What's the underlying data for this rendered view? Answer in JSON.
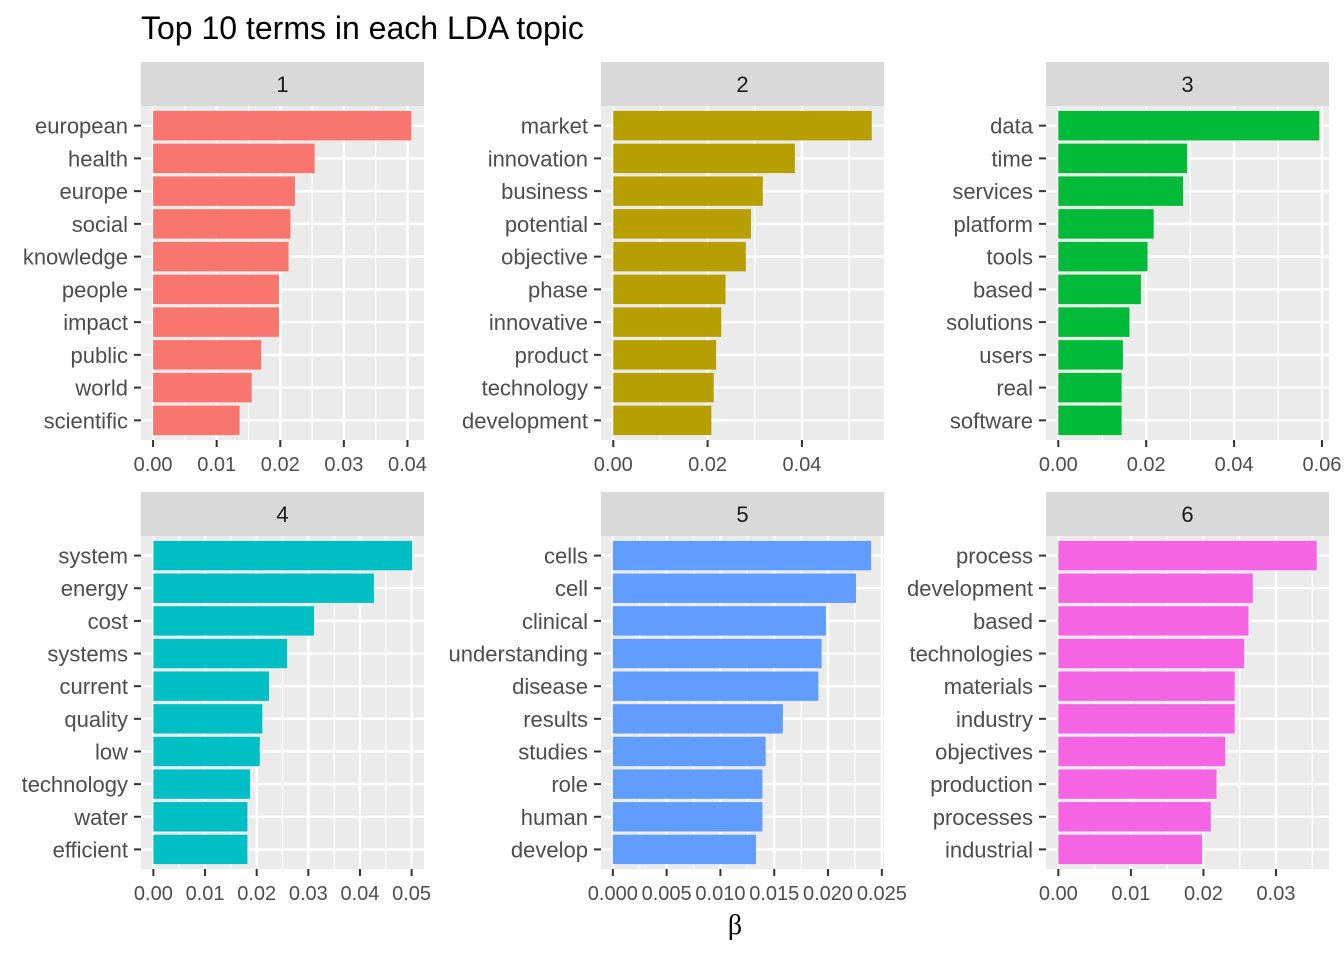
{
  "chart_data": {
    "type": "bar",
    "orientation": "horizontal",
    "title": "Top 10 terms in each LDA topic",
    "xlabel": "β",
    "ylabel": "",
    "grid": true,
    "legend": "none",
    "panels": [
      {
        "strip": "1",
        "color": "#F8766D",
        "xlim": [
          -0.0019,
          0.0426
        ],
        "ticks": [
          0,
          0.01,
          0.02,
          0.03,
          0.04
        ],
        "tick_labels": [
          "0.00",
          "0.01",
          "0.02",
          "0.03",
          "0.04"
        ],
        "categories": [
          "european",
          "health",
          "europe",
          "social",
          "knowledge",
          "people",
          "impact",
          "public",
          "world",
          "scientific"
        ],
        "values": [
          0.0406,
          0.0254,
          0.0223,
          0.0216,
          0.0213,
          0.0198,
          0.0198,
          0.017,
          0.0155,
          0.0136
        ]
      },
      {
        "strip": "2",
        "color": "#B79F00",
        "xlim": [
          -0.0026,
          0.0574
        ],
        "ticks": [
          0,
          0.02,
          0.04
        ],
        "tick_labels": [
          "0.00",
          "0.02",
          "0.04"
        ],
        "categories": [
          "market",
          "innovation",
          "business",
          "potential",
          "objective",
          "phase",
          "innovative",
          "product",
          "technology",
          "development"
        ],
        "values": [
          0.0548,
          0.0385,
          0.0317,
          0.0292,
          0.0281,
          0.0238,
          0.0229,
          0.0218,
          0.0213,
          0.0208
        ]
      },
      {
        "strip": "3",
        "color": "#00BA38",
        "xlim": [
          -0.0028,
          0.0616
        ],
        "ticks": [
          0,
          0.02,
          0.04,
          0.06
        ],
        "tick_labels": [
          "0.00",
          "0.02",
          "0.04",
          "0.06"
        ],
        "categories": [
          "data",
          "time",
          "services",
          "platform",
          "tools",
          "based",
          "solutions",
          "users",
          "real",
          "software"
        ],
        "values": [
          0.0594,
          0.0293,
          0.0284,
          0.0217,
          0.0203,
          0.0188,
          0.0162,
          0.0147,
          0.0144,
          0.0144
        ]
      },
      {
        "strip": "4",
        "color": "#00BFC4",
        "xlim": [
          -0.0024,
          0.0524
        ],
        "ticks": [
          0,
          0.01,
          0.02,
          0.03,
          0.04,
          0.05
        ],
        "tick_labels": [
          "0.00",
          "0.01",
          "0.02",
          "0.03",
          "0.04",
          "0.05"
        ],
        "categories": [
          "system",
          "energy",
          "cost",
          "systems",
          "current",
          "quality",
          "low",
          "technology",
          "water",
          "efficient"
        ],
        "values": [
          0.0501,
          0.0427,
          0.0311,
          0.0259,
          0.0224,
          0.0211,
          0.0206,
          0.0187,
          0.0182,
          0.0182
        ]
      },
      {
        "strip": "5",
        "color": "#619CFF",
        "xlim": [
          -0.0011,
          0.0252
        ],
        "ticks": [
          0,
          0.005,
          0.01,
          0.015,
          0.02,
          0.025
        ],
        "tick_labels": [
          "0.000",
          "0.005",
          "0.010",
          "0.015",
          "0.020",
          "0.025"
        ],
        "categories": [
          "cells",
          "cell",
          "clinical",
          "understanding",
          "disease",
          "results",
          "studies",
          "role",
          "human",
          "develop"
        ],
        "values": [
          0.024,
          0.0226,
          0.0198,
          0.0194,
          0.0191,
          0.0158,
          0.0142,
          0.0139,
          0.0139,
          0.0133
        ]
      },
      {
        "strip": "6",
        "color": "#F564E3",
        "xlim": [
          -0.0017,
          0.0373
        ],
        "ticks": [
          0,
          0.01,
          0.02,
          0.03
        ],
        "tick_labels": [
          "0.00",
          "0.01",
          "0.02",
          "0.03"
        ],
        "categories": [
          "process",
          "development",
          "based",
          "technologies",
          "materials",
          "industry",
          "objectives",
          "production",
          "processes",
          "industrial"
        ],
        "values": [
          0.0356,
          0.0268,
          0.0262,
          0.0256,
          0.0243,
          0.0243,
          0.023,
          0.0218,
          0.021,
          0.0198
        ]
      }
    ]
  }
}
